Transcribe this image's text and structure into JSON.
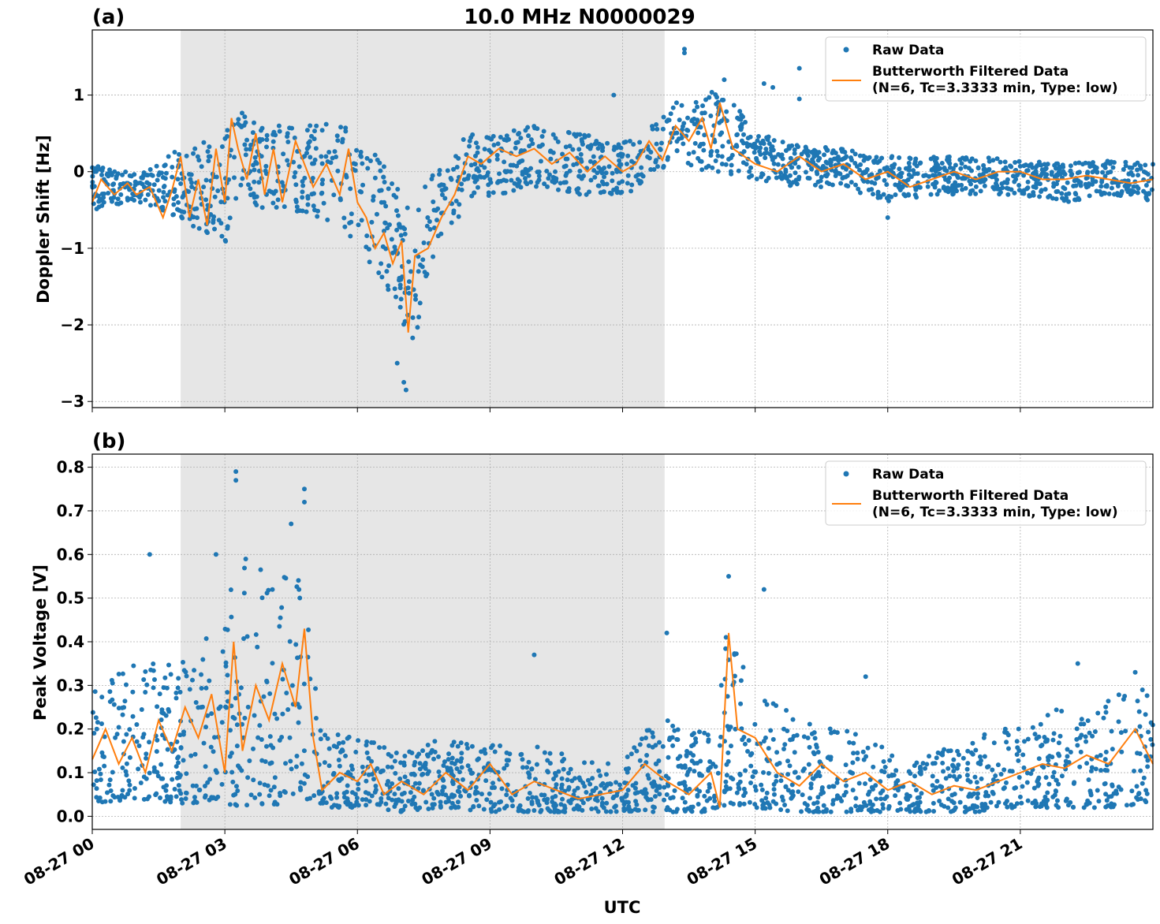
{
  "figure": {
    "title": "10.0 MHz N0000029",
    "xlabel": "UTC"
  },
  "colors": {
    "raw": "#1f77b4",
    "filtered": "#ff7f0e",
    "shade": "#e6e6e6",
    "grid": "#b0b0b0"
  },
  "chart_data": [
    {
      "panel_label": "(a)",
      "type": "scatter",
      "ylabel": "Doppler Shift [Hz]",
      "x_unit": "hours UTC since 08-27 00:00",
      "xlim": [
        0,
        24
      ],
      "ylim": [
        -3.08,
        1.85
      ],
      "yticks": [
        -3,
        -2,
        -1,
        0,
        1
      ],
      "ytick_labels": [
        "−3",
        "−2",
        "−1",
        "0",
        "1"
      ],
      "xticks": [
        0,
        3,
        6,
        9,
        12,
        15,
        18,
        21
      ],
      "xtick_labels": [
        "08-27 00",
        "08-27 03",
        "08-27 06",
        "08-27 09",
        "08-27 12",
        "08-27 15",
        "08-27 18",
        "08-27 21"
      ],
      "grid": true,
      "shaded_interval": [
        2.0,
        12.95
      ],
      "legend": {
        "position": "top-right",
        "entries": [
          "Raw Data",
          "Butterworth Filtered Data",
          "(N=6, Tc=3.3333 min, Type: low)"
        ]
      },
      "series": [
        {
          "name": "Butterworth Filtered Data",
          "kind": "line",
          "x": [
            0,
            0.2,
            0.5,
            0.8,
            1.0,
            1.3,
            1.6,
            1.8,
            2.0,
            2.2,
            2.4,
            2.6,
            2.8,
            3.0,
            3.15,
            3.3,
            3.5,
            3.7,
            3.9,
            4.1,
            4.3,
            4.6,
            4.8,
            5.0,
            5.3,
            5.6,
            5.8,
            6.0,
            6.2,
            6.4,
            6.6,
            6.8,
            7.0,
            7.15,
            7.3,
            7.6,
            7.9,
            8.2,
            8.5,
            8.8,
            9.2,
            9.6,
            10.0,
            10.4,
            10.8,
            11.2,
            11.6,
            12.0,
            12.3,
            12.6,
            12.9,
            13.2,
            13.5,
            13.8,
            14.0,
            14.2,
            14.5,
            15.0,
            15.5,
            16.0,
            16.5,
            17.0,
            17.5,
            18.0,
            18.5,
            19.0,
            19.5,
            20.0,
            20.5,
            21.0,
            21.5,
            22.0,
            22.5,
            23.0,
            23.5,
            24.0
          ],
          "y": [
            -0.4,
            -0.1,
            -0.3,
            -0.15,
            -0.3,
            -0.2,
            -0.6,
            -0.25,
            0.2,
            -0.6,
            -0.1,
            -0.7,
            0.3,
            -0.4,
            0.7,
            0.3,
            -0.1,
            0.5,
            -0.3,
            0.3,
            -0.4,
            0.4,
            0.1,
            -0.2,
            0.1,
            -0.3,
            0.3,
            -0.4,
            -0.6,
            -1.0,
            -0.8,
            -1.2,
            -0.9,
            -2.1,
            -1.1,
            -1.0,
            -0.6,
            -0.3,
            0.2,
            0.1,
            0.3,
            0.2,
            0.3,
            0.1,
            0.25,
            0.0,
            0.2,
            0.0,
            0.1,
            0.4,
            0.15,
            0.6,
            0.4,
            0.7,
            0.3,
            0.9,
            0.3,
            0.1,
            0.0,
            0.2,
            0.0,
            0.1,
            -0.1,
            0.0,
            -0.2,
            -0.1,
            0.0,
            -0.1,
            0.0,
            0.0,
            -0.1,
            -0.1,
            -0.05,
            -0.1,
            -0.15,
            -0.1
          ]
        },
        {
          "name": "Raw Data",
          "kind": "scatter",
          "envelope_x": [
            0,
            1.0,
            2.0,
            3.0,
            3.2,
            4.5,
            5.6,
            6.5,
            7.0,
            7.2,
            7.6,
            8.5,
            10.0,
            11.0,
            12.0,
            12.5,
            13.0,
            13.2,
            13.8,
            14.2,
            15.0,
            15.8,
            17.0,
            18.0,
            19.0,
            20.0,
            21.0,
            22.0,
            23.0,
            24.0
          ],
          "envelope_low": [
            -0.5,
            -0.4,
            -0.6,
            -1.0,
            -0.5,
            -0.5,
            -0.7,
            -1.4,
            -1.8,
            -2.6,
            -1.3,
            -0.4,
            -0.2,
            -0.3,
            -0.3,
            -0.2,
            0.0,
            0.2,
            0.0,
            0.0,
            -0.1,
            -0.2,
            -0.2,
            -0.4,
            -0.3,
            -0.3,
            -0.3,
            -0.4,
            -0.3,
            -0.4
          ],
          "envelope_high": [
            0.1,
            0.0,
            0.3,
            0.5,
            0.8,
            0.6,
            0.7,
            0.2,
            -0.2,
            -0.6,
            -0.1,
            0.5,
            0.6,
            0.5,
            0.4,
            0.5,
            0.8,
            1.0,
            0.9,
            1.2,
            0.5,
            0.4,
            0.3,
            0.2,
            0.2,
            0.2,
            0.15,
            0.1,
            0.15,
            0.1
          ],
          "outliers": [
            [
              13.4,
              1.6
            ],
            [
              13.4,
              1.55
            ],
            [
              14.3,
              1.2
            ],
            [
              15.2,
              1.15
            ],
            [
              15.4,
              1.1
            ],
            [
              16.0,
              1.35
            ],
            [
              16.0,
              0.95
            ],
            [
              7.1,
              -2.85
            ],
            [
              7.05,
              -2.75
            ],
            [
              6.9,
              -2.5
            ],
            [
              18.0,
              -0.6
            ],
            [
              11.8,
              1.0
            ]
          ]
        }
      ]
    },
    {
      "panel_label": "(b)",
      "type": "scatter",
      "ylabel": "Peak Voltage [V]",
      "x_unit": "hours UTC since 08-27 00:00",
      "xlim": [
        0,
        24
      ],
      "ylim": [
        -0.03,
        0.83
      ],
      "yticks": [
        0.0,
        0.1,
        0.2,
        0.3,
        0.4,
        0.5,
        0.6,
        0.7,
        0.8
      ],
      "ytick_labels": [
        "0.0",
        "0.1",
        "0.2",
        "0.3",
        "0.4",
        "0.5",
        "0.6",
        "0.7",
        "0.8"
      ],
      "xticks": [
        0,
        3,
        6,
        9,
        12,
        15,
        18,
        21
      ],
      "xtick_labels": [
        "08-27 00",
        "08-27 03",
        "08-27 06",
        "08-27 09",
        "08-27 12",
        "08-27 15",
        "08-27 18",
        "08-27 21"
      ],
      "grid": true,
      "shaded_interval": [
        2.0,
        12.95
      ],
      "legend": {
        "position": "top-right",
        "entries": [
          "Raw Data",
          "Butterworth Filtered Data",
          "(N=6, Tc=3.3333 min, Type: low)"
        ]
      },
      "series": [
        {
          "name": "Butterworth Filtered Data",
          "kind": "line",
          "x": [
            0,
            0.3,
            0.6,
            0.9,
            1.2,
            1.5,
            1.8,
            2.1,
            2.4,
            2.7,
            3.0,
            3.2,
            3.4,
            3.7,
            4.0,
            4.3,
            4.6,
            4.8,
            5.0,
            5.2,
            5.6,
            6.0,
            6.3,
            6.6,
            7.0,
            7.5,
            8.0,
            8.5,
            9.0,
            9.5,
            10.0,
            10.5,
            11.0,
            11.5,
            12.0,
            12.5,
            13.0,
            13.5,
            14.0,
            14.2,
            14.4,
            14.6,
            15.0,
            15.5,
            16.0,
            16.5,
            17.0,
            17.5,
            18.0,
            18.5,
            19.0,
            19.5,
            20.0,
            20.5,
            21.0,
            21.5,
            22.0,
            22.5,
            23.0,
            23.3,
            23.6,
            24.0
          ],
          "y": [
            0.13,
            0.2,
            0.12,
            0.18,
            0.1,
            0.22,
            0.15,
            0.25,
            0.18,
            0.28,
            0.1,
            0.4,
            0.15,
            0.3,
            0.22,
            0.35,
            0.25,
            0.43,
            0.18,
            0.06,
            0.1,
            0.08,
            0.12,
            0.05,
            0.08,
            0.05,
            0.1,
            0.06,
            0.12,
            0.05,
            0.08,
            0.06,
            0.04,
            0.05,
            0.06,
            0.12,
            0.08,
            0.05,
            0.1,
            0.02,
            0.42,
            0.2,
            0.18,
            0.1,
            0.07,
            0.12,
            0.08,
            0.1,
            0.06,
            0.08,
            0.05,
            0.07,
            0.06,
            0.08,
            0.1,
            0.12,
            0.11,
            0.14,
            0.12,
            0.16,
            0.2,
            0.12
          ]
        },
        {
          "name": "Raw Data",
          "kind": "scatter",
          "envelope_x": [
            0,
            1.0,
            2.0,
            3.0,
            3.3,
            4.5,
            4.9,
            5.1,
            6.0,
            7.0,
            8.0,
            9.0,
            10.0,
            11.0,
            12.0,
            12.5,
            13.0,
            14.0,
            14.4,
            15.0,
            16.0,
            17.0,
            18.0,
            19.0,
            20.0,
            21.0,
            22.0,
            23.0,
            24.0
          ],
          "envelope_low": [
            0.03,
            0.04,
            0.03,
            0.03,
            0.02,
            0.03,
            0.04,
            0.02,
            0.02,
            0.01,
            0.02,
            0.01,
            0.01,
            0.01,
            0.01,
            0.01,
            0.01,
            0.01,
            0.03,
            0.02,
            0.01,
            0.01,
            0.01,
            0.01,
            0.01,
            0.02,
            0.02,
            0.02,
            0.03
          ],
          "envelope_high": [
            0.3,
            0.35,
            0.35,
            0.45,
            0.6,
            0.55,
            0.6,
            0.2,
            0.18,
            0.15,
            0.18,
            0.17,
            0.17,
            0.13,
            0.12,
            0.2,
            0.22,
            0.2,
            0.45,
            0.3,
            0.22,
            0.2,
            0.17,
            0.15,
            0.18,
            0.22,
            0.25,
            0.28,
            0.3
          ],
          "outliers": [
            [
              3.25,
              0.79
            ],
            [
              3.25,
              0.77
            ],
            [
              4.8,
              0.75
            ],
            [
              4.8,
              0.72
            ],
            [
              4.5,
              0.67
            ],
            [
              1.3,
              0.6
            ],
            [
              2.8,
              0.6
            ],
            [
              14.4,
              0.55
            ],
            [
              15.2,
              0.52
            ],
            [
              13.0,
              0.42
            ],
            [
              10.0,
              0.37
            ],
            [
              17.5,
              0.32
            ],
            [
              22.3,
              0.35
            ],
            [
              23.6,
              0.33
            ]
          ]
        }
      ]
    }
  ]
}
